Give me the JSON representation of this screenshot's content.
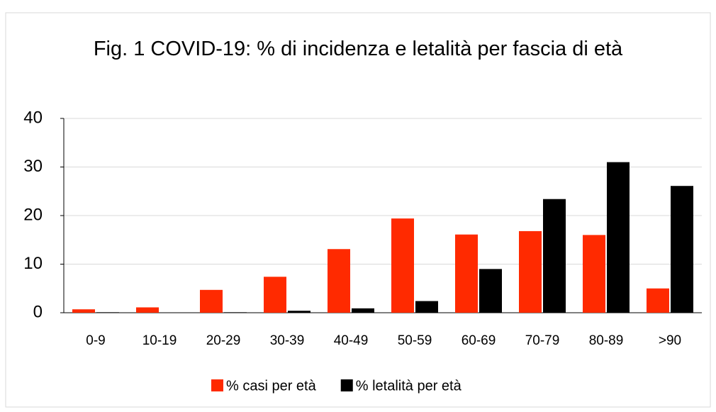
{
  "chart_data": {
    "type": "bar",
    "title": "Fig. 1 COVID-19: % di incidenza e letalità per fascia di età",
    "categories": [
      "0-9",
      "10-19",
      "20-29",
      "30-39",
      "40-49",
      "50-59",
      "60-69",
      "70-79",
      "80-89",
      ">90"
    ],
    "series": [
      {
        "name": "% casi per età",
        "color": "#ff2a00",
        "values": [
          0.7,
          1.1,
          4.7,
          7.4,
          13.1,
          19.4,
          16.1,
          16.8,
          16.0,
          5.0
        ]
      },
      {
        "name": "% letalità per età",
        "color": "#000000",
        "values": [
          0.1,
          0.0,
          0.1,
          0.4,
          0.9,
          2.4,
          9.0,
          23.4,
          31.0,
          26.1
        ]
      }
    ],
    "ylim": [
      0,
      40
    ],
    "yticks": [
      0,
      10,
      20,
      30,
      40
    ],
    "grid": true,
    "legend": "bottom"
  }
}
